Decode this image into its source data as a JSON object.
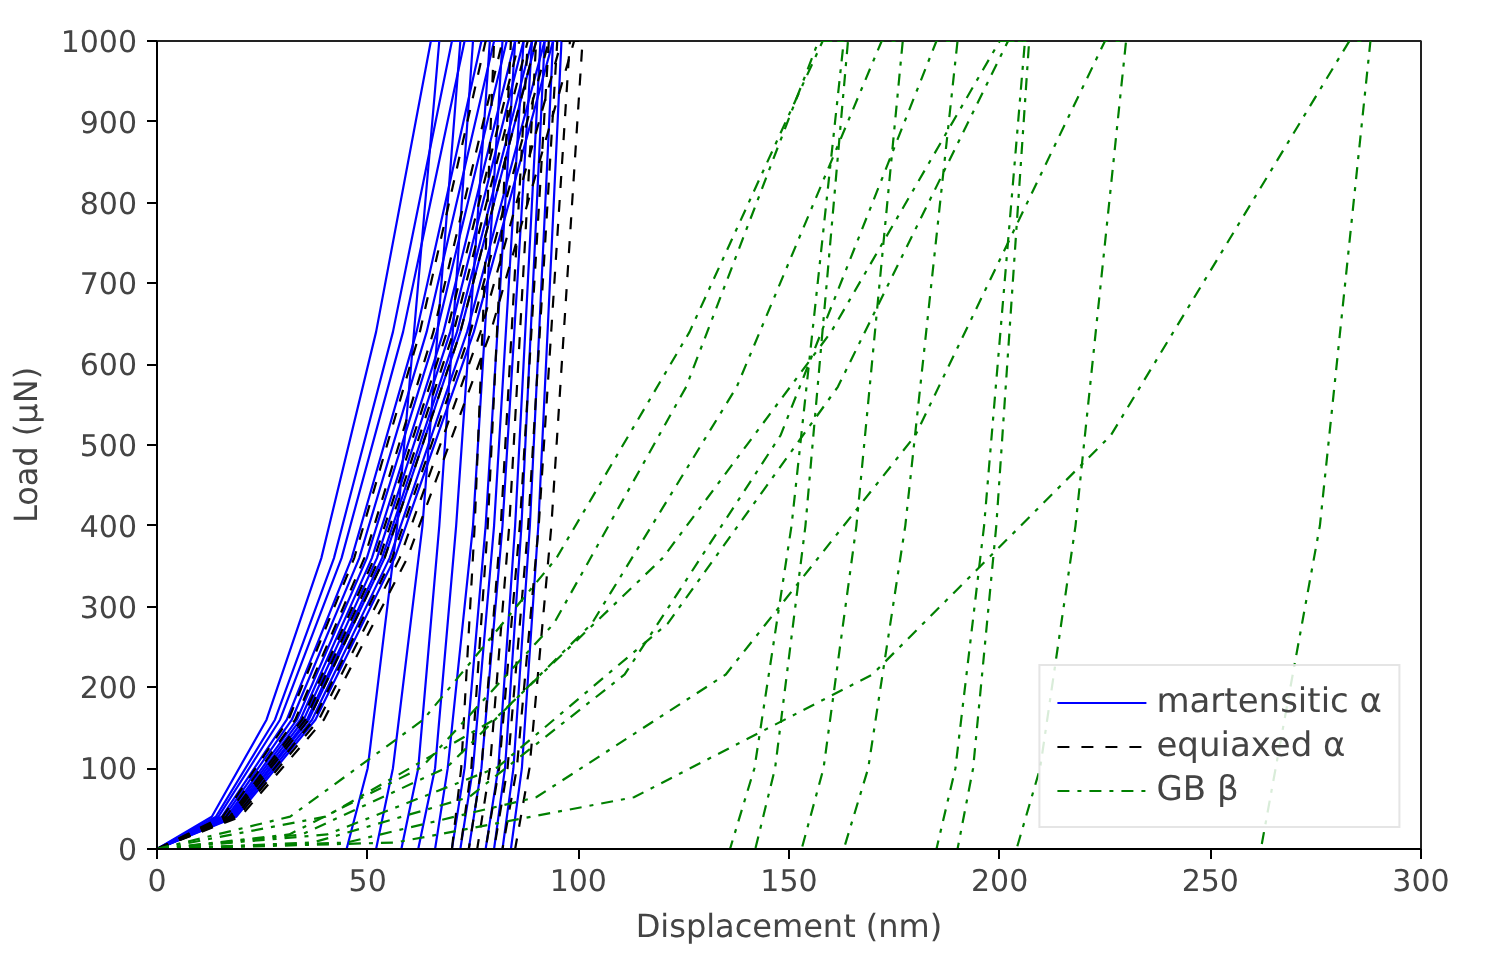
{
  "chart_data": {
    "type": "line",
    "xlabel": "Displacement (nm)",
    "ylabel": "Load (µN)",
    "xlim": [
      0,
      300
    ],
    "ylim": [
      0,
      1000
    ],
    "xticks": [
      0,
      50,
      100,
      150,
      200,
      250,
      300
    ],
    "yticks": [
      0,
      100,
      200,
      300,
      400,
      500,
      600,
      700,
      800,
      900,
      1000
    ],
    "grid": false,
    "legend": "bottom right",
    "marker": "none",
    "series": [
      {
        "name": "martensitic α",
        "color": "#0000ff",
        "line_style": "solid",
        "x": [
          0,
          13,
          26,
          39,
          52,
          65,
          67,
          57,
          50,
          45
        ],
        "values": [
          0,
          40,
          160,
          360,
          640,
          1000,
          1000,
          400,
          100,
          0
        ]
      },
      {
        "color": "#0000ff",
        "line_style": "solid",
        "x": [
          0,
          14,
          28,
          42,
          56,
          70,
          72,
          63,
          56,
          52
        ],
        "values": [
          0,
          40,
          160,
          360,
          640,
          1000,
          1000,
          400,
          100,
          0
        ]
      },
      {
        "color": "#0000ff",
        "line_style": "solid",
        "x": [
          0,
          14.6,
          29.2,
          43.8,
          58.4,
          73,
          75,
          67,
          62,
          58
        ],
        "values": [
          0,
          40,
          160,
          360,
          640,
          1000,
          1000,
          400,
          100,
          0
        ]
      },
      {
        "color": "#0000ff",
        "line_style": "solid",
        "x": [
          0,
          15.4,
          30.8,
          46.2,
          61.6,
          77,
          79,
          71,
          66,
          62
        ],
        "values": [
          0,
          40,
          160,
          360,
          640,
          1000,
          1000,
          400,
          100,
          0
        ]
      },
      {
        "color": "#0000ff",
        "line_style": "solid",
        "x": [
          0,
          16,
          32,
          48,
          64,
          80,
          82,
          75,
          69,
          66
        ],
        "values": [
          0,
          40,
          160,
          360,
          640,
          1000,
          1000,
          400,
          100,
          0
        ]
      },
      {
        "color": "#0000ff",
        "line_style": "solid",
        "x": [
          0,
          16.6,
          33.2,
          49.8,
          66.4,
          83,
          85,
          78,
          73,
          70
        ],
        "values": [
          0,
          40,
          160,
          360,
          640,
          1000,
          1000,
          400,
          100,
          0
        ]
      },
      {
        "color": "#0000ff",
        "line_style": "solid",
        "x": [
          0,
          17,
          34,
          51,
          68,
          85,
          87,
          80,
          75,
          72
        ],
        "values": [
          0,
          40,
          160,
          360,
          640,
          1000,
          1000,
          400,
          100,
          0
        ]
      },
      {
        "color": "#0000ff",
        "line_style": "solid",
        "x": [
          0,
          17.4,
          34.8,
          52.2,
          69.6,
          87,
          89,
          82,
          77,
          74
        ],
        "values": [
          0,
          40,
          160,
          360,
          640,
          1000,
          1000,
          400,
          100,
          0
        ]
      },
      {
        "color": "#0000ff",
        "line_style": "solid",
        "x": [
          0,
          17.8,
          35.6,
          53.4,
          71.2,
          89,
          91,
          85,
          81,
          78
        ],
        "values": [
          0,
          40,
          160,
          360,
          640,
          1000,
          1000,
          400,
          100,
          0
        ]
      },
      {
        "color": "#0000ff",
        "line_style": "solid",
        "x": [
          0,
          18,
          36,
          54,
          72,
          90,
          92,
          86.5,
          82.6,
          80
        ],
        "values": [
          0,
          40,
          160,
          360,
          640,
          1000,
          1000,
          400,
          100,
          0
        ]
      },
      {
        "color": "#0000ff",
        "line_style": "solid",
        "x": [
          0,
          18.4,
          36.8,
          55.2,
          73.6,
          92,
          94,
          88.5,
          84.6,
          82
        ],
        "values": [
          0,
          40,
          160,
          360,
          640,
          1000,
          1000,
          400,
          100,
          0
        ]
      },
      {
        "color": "#0000ff",
        "line_style": "solid",
        "x": [
          0,
          18.8,
          37.6,
          56.4,
          75.2,
          94,
          96,
          90.5,
          86.6,
          84
        ],
        "values": [
          0,
          40,
          160,
          360,
          640,
          1000,
          1000,
          400,
          100,
          0
        ]
      },
      {
        "name": "equiaxed α",
        "color": "#000000",
        "line_style": "dashed",
        "x": [
          0,
          15.6,
          31.2,
          46.8,
          62.4,
          78,
          80,
          75.4,
          72.2,
          70
        ],
        "values": [
          0,
          40,
          160,
          360,
          640,
          1000,
          1000,
          400,
          100,
          0
        ]
      },
      {
        "color": "#000000",
        "line_style": "dashed",
        "x": [
          0,
          16.4,
          32.8,
          49.2,
          65.6,
          82,
          84,
          78.5,
          74.6,
          72
        ],
        "values": [
          0,
          40,
          160,
          360,
          640,
          1000,
          1000,
          400,
          100,
          0
        ]
      },
      {
        "color": "#000000",
        "line_style": "dashed",
        "x": [
          0,
          17.2,
          34.4,
          51.6,
          68.8,
          86,
          88,
          81.6,
          77,
          74
        ],
        "values": [
          0,
          40,
          160,
          360,
          640,
          1000,
          1000,
          400,
          100,
          0
        ]
      },
      {
        "color": "#000000",
        "line_style": "dashed",
        "x": [
          0,
          17.6,
          35.2,
          52.8,
          70.4,
          88,
          90,
          83.6,
          79,
          76
        ],
        "values": [
          0,
          40,
          160,
          360,
          640,
          1000,
          1000,
          400,
          100,
          0
        ]
      },
      {
        "color": "#000000",
        "line_style": "dashed",
        "x": [
          0,
          18,
          36,
          54,
          72,
          90,
          93,
          86.1,
          81.2,
          78
        ],
        "values": [
          0,
          40,
          160,
          360,
          640,
          1000,
          1000,
          400,
          100,
          0
        ]
      },
      {
        "color": "#000000",
        "line_style": "dashed",
        "x": [
          0,
          18.6,
          37.2,
          55.8,
          74.4,
          93,
          95,
          88.1,
          83.2,
          80
        ],
        "values": [
          0,
          40,
          160,
          360,
          640,
          1000,
          1000,
          400,
          100,
          0
        ]
      },
      {
        "color": "#000000",
        "line_style": "dashed",
        "x": [
          0,
          19.2,
          38.4,
          57.6,
          76.8,
          96,
          98,
          90.6,
          85.4,
          82
        ],
        "values": [
          0,
          40,
          160,
          360,
          640,
          1000,
          1000,
          400,
          100,
          0
        ]
      },
      {
        "color": "#000000",
        "line_style": "dashed",
        "x": [
          0,
          19.8,
          39.6,
          59.4,
          79.2,
          99,
          101,
          93.6,
          88.4,
          85
        ],
        "values": [
          0,
          40,
          160,
          360,
          640,
          1000,
          1000,
          400,
          100,
          0
        ]
      },
      {
        "name": "GB β",
        "color": "#008000",
        "line_style": "dashdot",
        "x": [
          0,
          31.4,
          62.8,
          94.2,
          125.6,
          157,
          163,
          150.6,
          141.8,
          136
        ],
        "values": [
          0,
          18,
          101,
          279,
          572,
          1000,
          1000,
          400,
          100,
          0
        ]
      },
      {
        "color": "#008000",
        "line_style": "dashdot",
        "x": [
          0,
          31.6,
          63.2,
          94.8,
          126.4,
          158,
          164,
          153.9,
          146.7,
          142
        ],
        "values": [
          0,
          40,
          160,
          360,
          640,
          1000,
          1000,
          400,
          100,
          0
        ]
      },
      {
        "color": "#008000",
        "line_style": "dashdot",
        "x": [
          0,
          34.4,
          68.8,
          103.2,
          137.6,
          172,
          177,
          166,
          158.2,
          153
        ],
        "values": [
          0,
          18,
          101,
          279,
          572,
          1000,
          1000,
          400,
          100,
          0
        ]
      },
      {
        "color": "#008000",
        "line_style": "dashdot",
        "x": [
          0,
          37,
          74,
          111,
          148,
          185,
          190,
          177.6,
          168.8,
          163
        ],
        "values": [
          0,
          8,
          64,
          216,
          512,
          1000,
          1000,
          400,
          100,
          0
        ]
      },
      {
        "color": "#008000",
        "line_style": "dashdot",
        "x": [
          0,
          40,
          80,
          120,
          160,
          200,
          206,
          196.3,
          189.5,
          185
        ],
        "values": [
          0,
          40,
          160,
          360,
          640,
          1000,
          1000,
          400,
          100,
          0
        ]
      },
      {
        "color": "#008000",
        "line_style": "dashdot",
        "x": [
          0,
          40.4,
          80.8,
          121.2,
          161.6,
          202,
          207,
          199.2,
          193.7,
          190
        ],
        "values": [
          0,
          18,
          101,
          279,
          572,
          1000,
          1000,
          400,
          100,
          0
        ]
      },
      {
        "color": "#008000",
        "line_style": "dashdot",
        "x": [
          0,
          45,
          90,
          135,
          180,
          225,
          230,
          218,
          209.6,
          204
        ],
        "values": [
          0,
          8,
          64,
          216,
          512,
          1000,
          1000,
          400,
          100,
          0
        ]
      },
      {
        "color": "#008000",
        "line_style": "dashdot",
        "x": [
          0,
          56.6,
          113.2,
          169.8,
          226.4,
          283,
          288,
          276,
          262
        ],
        "values": [
          0,
          8,
          64,
          216,
          512,
          1000,
          1000,
          400,
          0
        ]
      }
    ]
  }
}
